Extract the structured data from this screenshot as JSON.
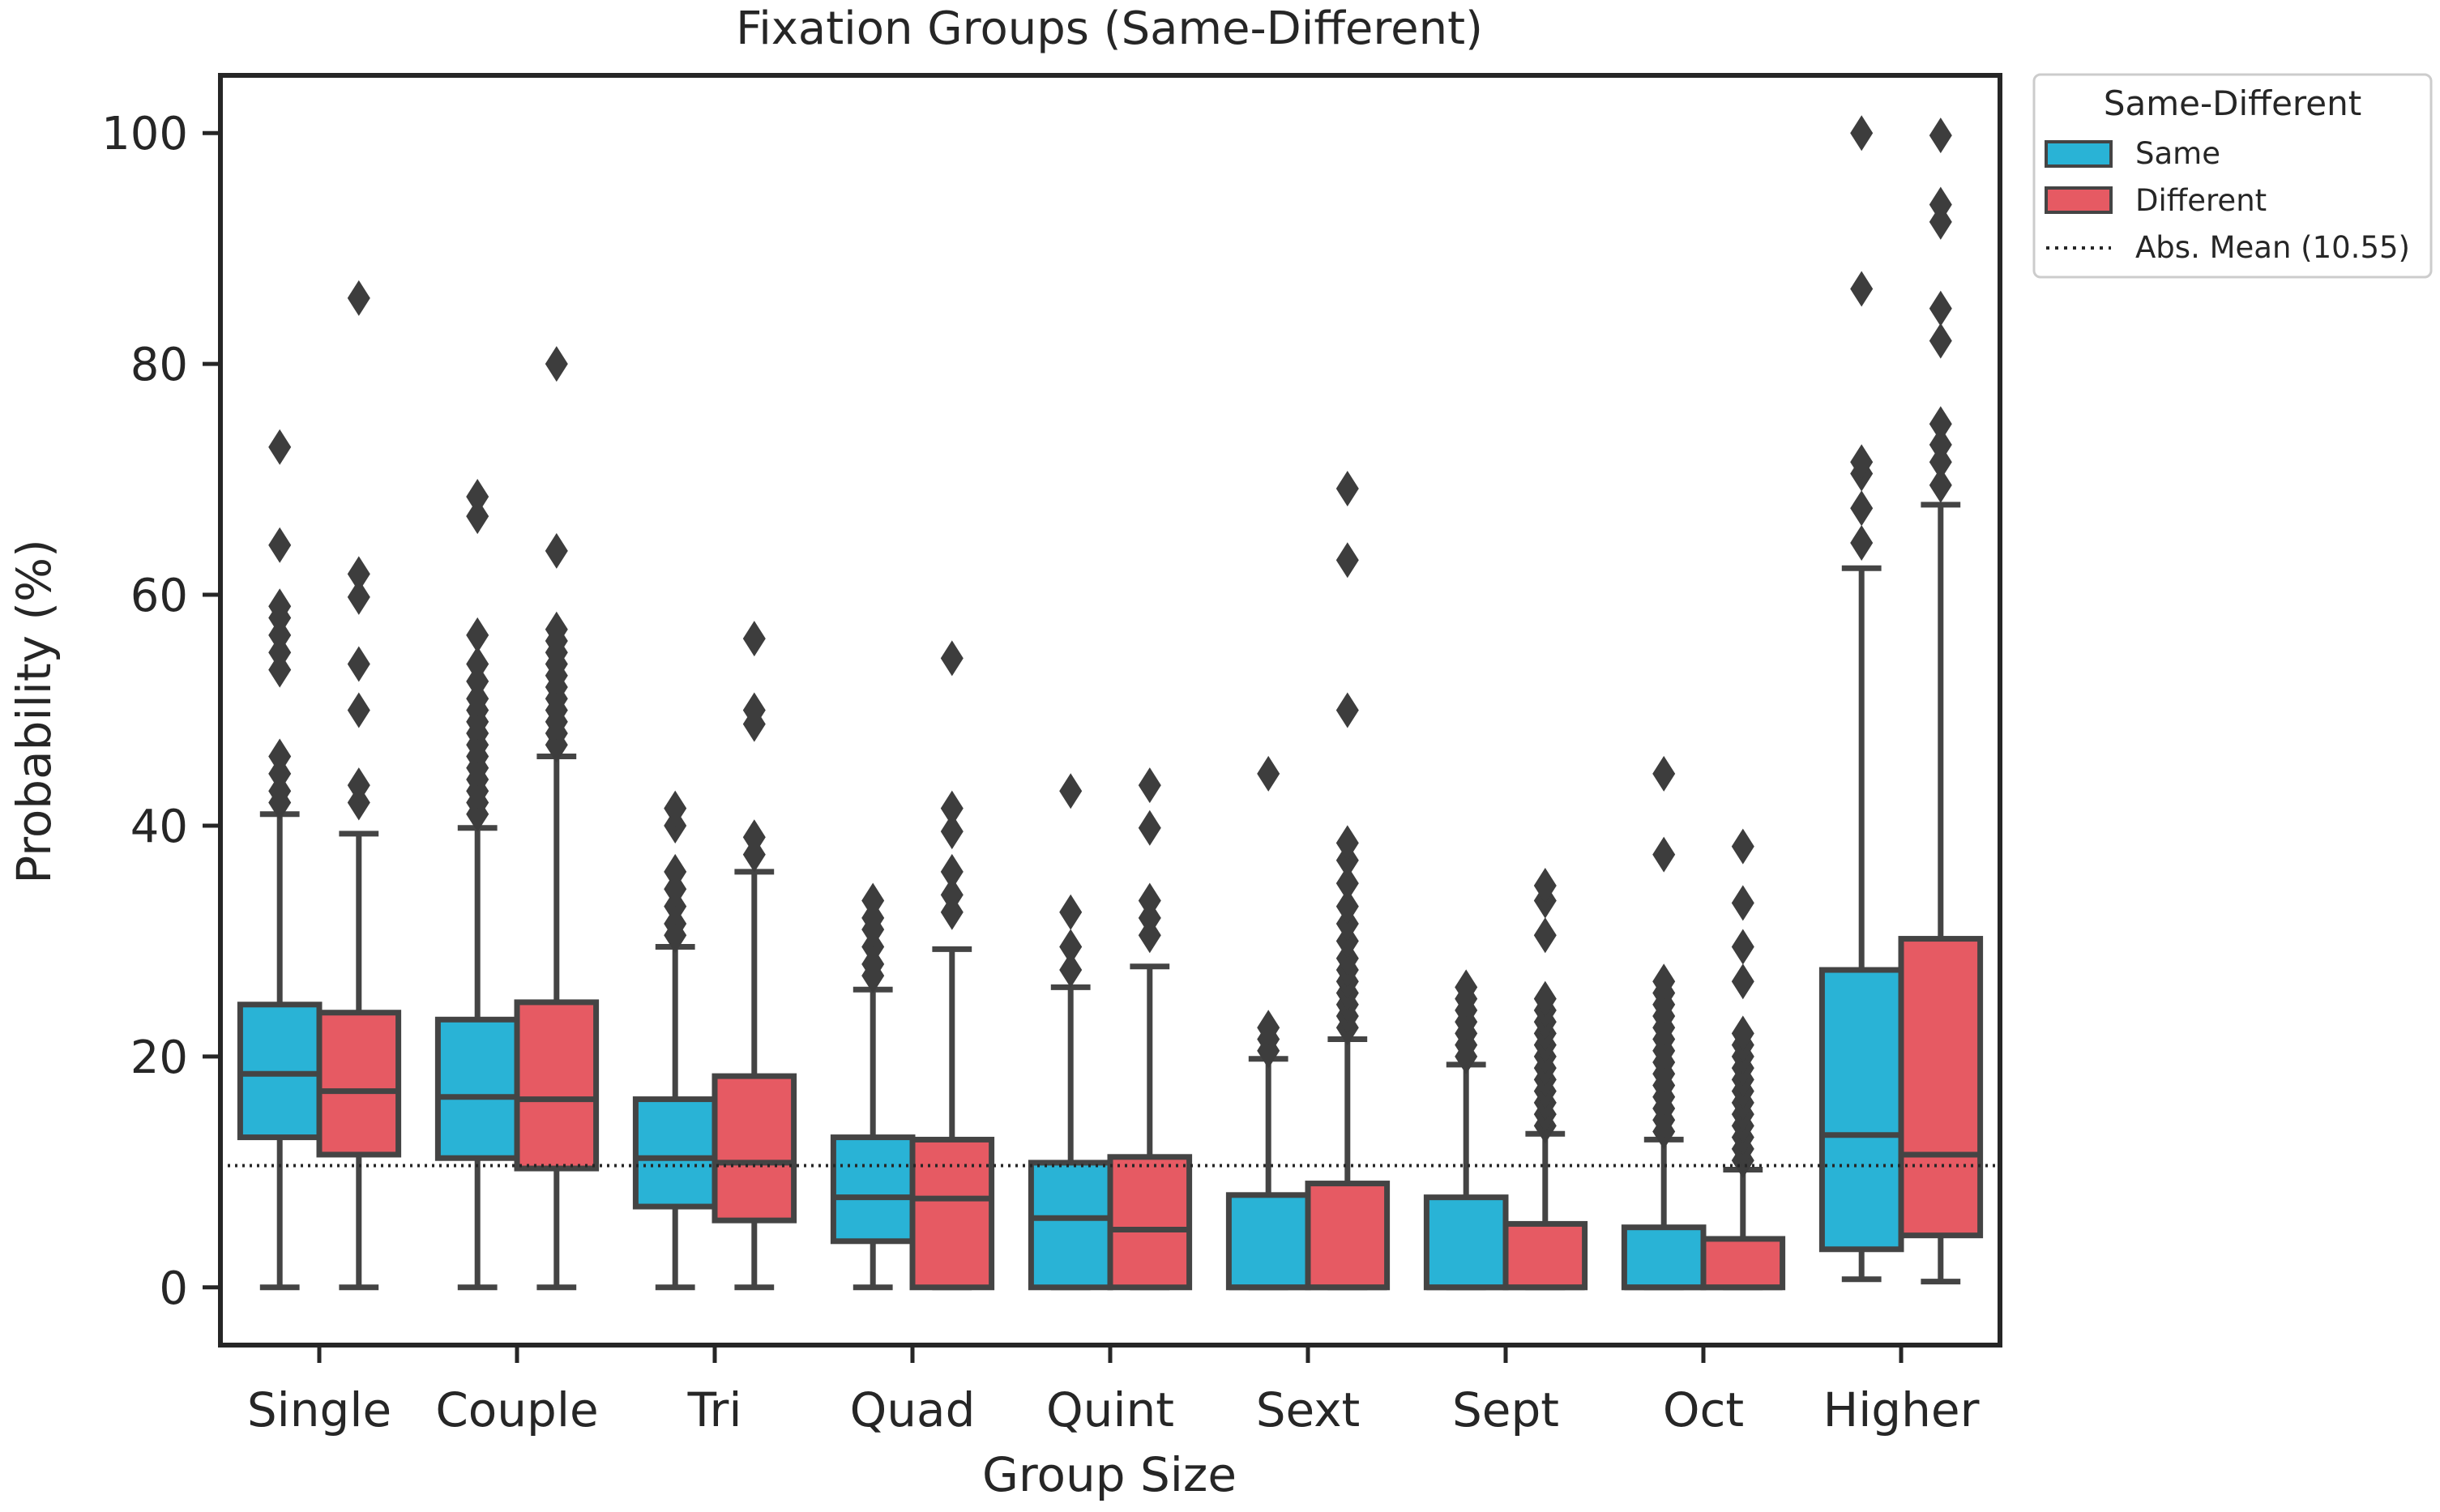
{
  "chart_data": {
    "type": "boxplot",
    "title": "Fixation Groups (Same-Different)",
    "xlabel": "Group Size",
    "ylabel": "Probability (%)",
    "ylim": [
      -5,
      105
    ],
    "yticks": [
      0,
      20,
      40,
      60,
      80,
      100
    ],
    "categories": [
      "Single",
      "Couple",
      "Tri",
      "Quad",
      "Quint",
      "Sext",
      "Sept",
      "Oct",
      "Higher"
    ],
    "legend": {
      "title": "Same-Different",
      "position": "outside-top-right",
      "reference_label": "Abs. Mean (10.55)"
    },
    "reference_line": {
      "value": 10.55,
      "style": "dotted"
    },
    "colors": {
      "Same": "#29b3d6",
      "Different": "#e65a63",
      "line": "#444444"
    },
    "series": [
      {
        "name": "Same",
        "boxes": [
          {
            "whisker_low": 0,
            "q1": 13.0,
            "median": 18.5,
            "q3": 24.5,
            "whisker_high": 41.0,
            "outliers": [
              42.0,
              43.0,
              44.5,
              46.0,
              53.5,
              55.0,
              56.5,
              58.0,
              59.0,
              64.3,
              72.8
            ]
          },
          {
            "whisker_low": 0,
            "q1": 11.2,
            "median": 16.5,
            "q3": 23.2,
            "whisker_high": 39.8,
            "outliers": [
              41.0,
              42.0,
              43.0,
              44.0,
              45.0,
              46.0,
              47.0,
              48.0,
              49.0,
              50.0,
              51.0,
              52.5,
              54.0,
              56.5,
              66.8,
              68.5
            ]
          },
          {
            "whisker_low": 0,
            "q1": 7.0,
            "median": 11.2,
            "q3": 16.3,
            "whisker_high": 29.5,
            "outliers": [
              30.5,
              31.5,
              33.0,
              34.5,
              36.0,
              40.0,
              41.5
            ]
          },
          {
            "whisker_low": 0,
            "q1": 4.0,
            "median": 7.8,
            "q3": 13.0,
            "whisker_high": 25.8,
            "outliers": [
              27.0,
              28.0,
              29.5,
              31.0,
              32.0,
              33.5
            ]
          },
          {
            "whisker_low": 0,
            "q1": 0,
            "median": 6.0,
            "q3": 10.8,
            "whisker_high": 26.0,
            "outliers": [
              27.5,
              29.5,
              32.5,
              43.0
            ]
          },
          {
            "whisker_low": 0,
            "q1": 0,
            "median": 0,
            "q3": 8.0,
            "whisker_high": 19.8,
            "outliers": [
              20.5,
              21.5,
              22.5,
              44.5
            ]
          },
          {
            "whisker_low": 0,
            "q1": 0,
            "median": 0,
            "q3": 7.8,
            "whisker_high": 19.3,
            "outliers": [
              20.0,
              21.0,
              22.0,
              23.0,
              24.0,
              25.0,
              26.0
            ]
          },
          {
            "whisker_low": 0,
            "q1": 0,
            "median": 0,
            "q3": 5.2,
            "whisker_high": 12.8,
            "outliers": [
              13.5,
              14.5,
              15.5,
              16.5,
              17.5,
              18.5,
              19.5,
              20.5,
              21.5,
              22.5,
              23.5,
              24.5,
              25.5,
              26.5,
              37.5,
              44.5
            ]
          },
          {
            "whisker_low": 0.7,
            "q1": 3.3,
            "median": 13.2,
            "q3": 27.5,
            "whisker_high": 62.3,
            "outliers": [
              64.5,
              67.5,
              70.5,
              71.5,
              86.5,
              100.0
            ]
          }
        ]
      },
      {
        "name": "Different",
        "boxes": [
          {
            "whisker_low": 0,
            "q1": 11.5,
            "median": 17.0,
            "q3": 23.8,
            "whisker_high": 39.3,
            "outliers": [
              42.0,
              43.5,
              50.0,
              54.0,
              59.8,
              61.8,
              85.7
            ]
          },
          {
            "whisker_low": 0,
            "q1": 10.3,
            "median": 16.3,
            "q3": 24.7,
            "whisker_high": 46.0,
            "outliers": [
              47.0,
              48.0,
              49.0,
              50.0,
              51.0,
              52.0,
              53.0,
              54.0,
              55.0,
              56.0,
              57.0,
              63.8,
              80.0
            ]
          },
          {
            "whisker_low": 0,
            "q1": 5.8,
            "median": 10.8,
            "q3": 18.3,
            "whisker_high": 36.0,
            "outliers": [
              37.5,
              39.0,
              48.8,
              50.0,
              56.2
            ]
          },
          {
            "whisker_low": 0,
            "q1": 0,
            "median": 7.7,
            "q3": 12.8,
            "whisker_high": 29.3,
            "outliers": [
              32.5,
              34.0,
              36.0,
              39.5,
              41.5,
              54.5
            ]
          },
          {
            "whisker_low": 0,
            "q1": 0,
            "median": 5.0,
            "q3": 11.3,
            "whisker_high": 27.8,
            "outliers": [
              30.5,
              32.0,
              33.5,
              39.8,
              43.5
            ]
          },
          {
            "whisker_low": 0,
            "q1": 0,
            "median": 0,
            "q3": 9.0,
            "whisker_high": 21.5,
            "outliers": [
              22.5,
              23.5,
              24.5,
              25.5,
              26.5,
              27.5,
              28.5,
              30.0,
              31.5,
              33.0,
              35.0,
              37.0,
              38.5,
              50.0,
              63.0,
              69.2
            ]
          },
          {
            "whisker_low": 0,
            "q1": 0,
            "median": 0,
            "q3": 5.5,
            "whisker_high": 13.3,
            "outliers": [
              14.0,
              15.0,
              16.0,
              17.0,
              18.0,
              19.0,
              20.0,
              21.0,
              22.0,
              23.0,
              24.0,
              25.0,
              30.5,
              33.5,
              34.8
            ]
          },
          {
            "whisker_low": 0,
            "q1": 0,
            "median": 0,
            "q3": 4.2,
            "whisker_high": 10.2,
            "outliers": [
              11.0,
              12.0,
              13.0,
              14.0,
              15.0,
              16.0,
              17.0,
              18.0,
              19.0,
              20.0,
              21.0,
              22.0,
              26.5,
              29.5,
              33.3,
              38.2
            ]
          },
          {
            "whisker_low": 0.5,
            "q1": 4.5,
            "median": 11.5,
            "q3": 30.2,
            "whisker_high": 67.8,
            "outliers": [
              69.5,
              71.5,
              73.0,
              74.8,
              82.0,
              84.8,
              92.3,
              93.8,
              99.8
            ]
          }
        ]
      }
    ]
  }
}
